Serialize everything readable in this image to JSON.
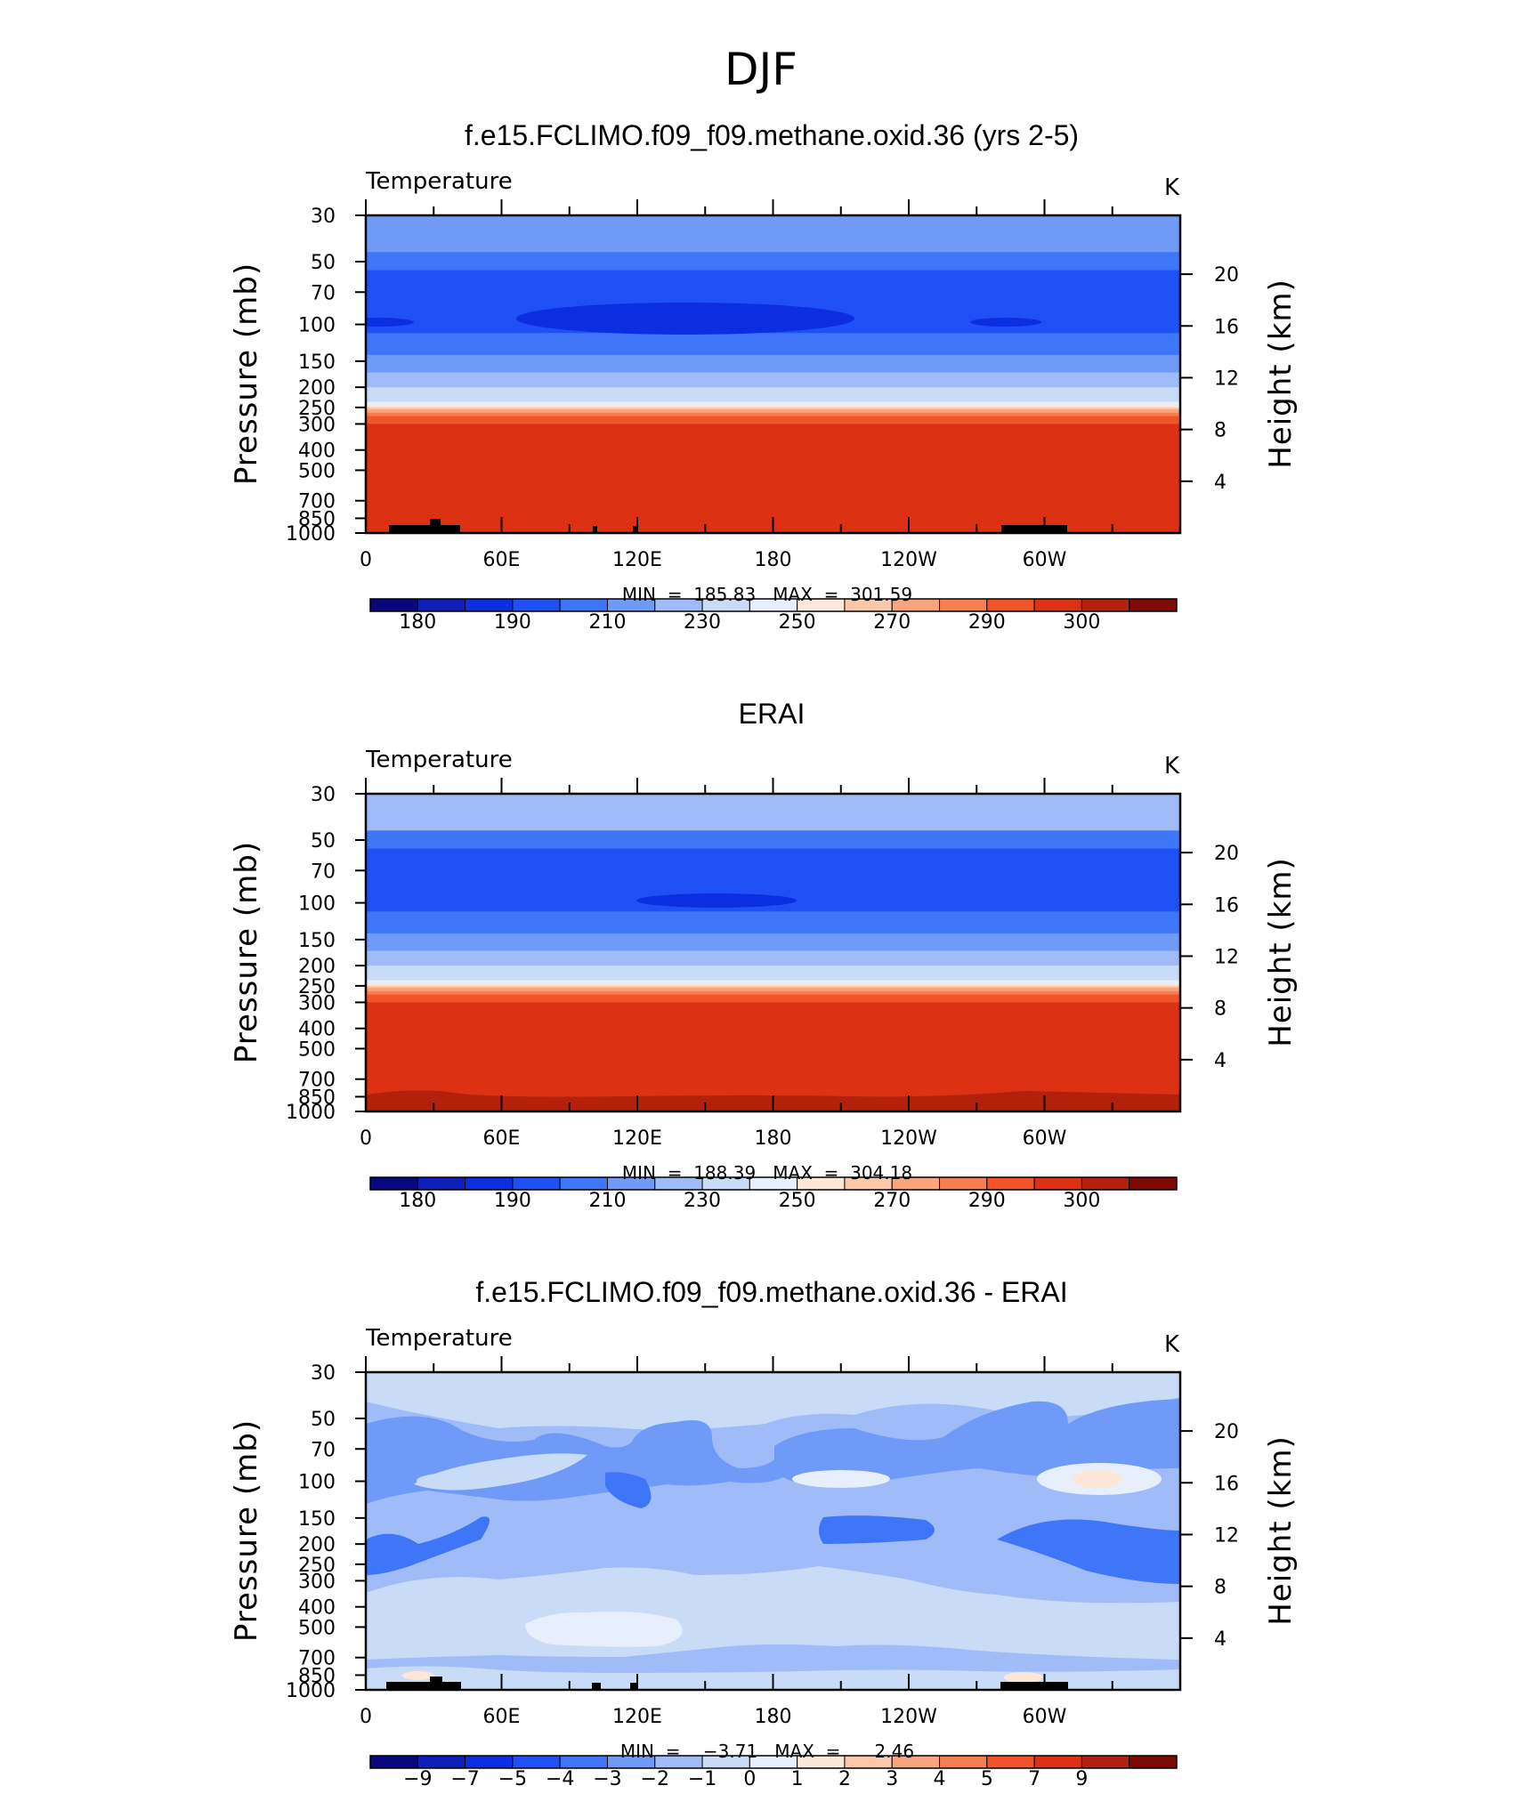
{
  "figure_title": "DJF",
  "chart_data": [
    {
      "type": "heatmap",
      "title": "f.e15.FCLIMO.f09_f09.methane.oxid.36 (yrs 2-5)",
      "variable": "Temperature",
      "units": "K",
      "ylabel": "Pressure (mb)",
      "ylabel_right": "Height (km)",
      "x_ticks": [
        "0",
        "60E",
        "120E",
        "180",
        "120W",
        "60W"
      ],
      "y_ticks": [
        "30",
        "50",
        "70",
        "100",
        "150",
        "200",
        "250",
        "300",
        "400",
        "500",
        "700",
        "850",
        "1000"
      ],
      "height_ticks": [
        "20",
        "16",
        "12",
        "8",
        "4"
      ],
      "stats": "MIN  =  185.83   MAX  =  301.59",
      "min": 185.83,
      "max": 301.59,
      "colorbar_labels": [
        "180",
        "190",
        "210",
        "230",
        "250",
        "270",
        "290",
        "300"
      ],
      "colors": [
        "#08087e",
        "#0d1fb8",
        "#0a2ee0",
        "#1e50f5",
        "#3f76f8",
        "#6f9af8",
        "#9fbcf8",
        "#c8dcf8",
        "#e6effb",
        "#fde7d8",
        "#fbc8aa",
        "#f9a47d",
        "#f67e50",
        "#f2552a",
        "#dc3112",
        "#b3200c",
        "#7e0a06"
      ],
      "profile_levels": [
        30,
        45,
        55,
        75,
        95,
        110,
        140,
        170,
        200,
        235,
        245,
        250,
        255,
        265,
        275,
        280,
        285,
        300,
        1000
      ],
      "profile_colors": [
        "#6f9af8",
        "#3f76f8",
        "#1e50f5",
        "#1e50f5",
        "#1e50f5",
        "#3f76f8",
        "#6f9af8",
        "#9fbcf8",
        "#c8dcf8",
        "#e6effb",
        "#fde7d8",
        "#fbc8aa",
        "#f9a47d",
        "#f67e50",
        "#f2552a",
        "#f2552a",
        "#f2552a",
        "#dc3112"
      ]
    },
    {
      "type": "heatmap",
      "title": "ERAI",
      "variable": "Temperature",
      "units": "K",
      "ylabel": "Pressure (mb)",
      "ylabel_right": "Height (km)",
      "x_ticks": [
        "0",
        "60E",
        "120E",
        "180",
        "120W",
        "60W"
      ],
      "y_ticks": [
        "30",
        "50",
        "70",
        "100",
        "150",
        "200",
        "250",
        "300",
        "400",
        "500",
        "700",
        "850",
        "1000"
      ],
      "height_ticks": [
        "20",
        "16",
        "12",
        "8",
        "4"
      ],
      "stats": "MIN  =  188.39   MAX  =  304.18",
      "min": 188.39,
      "max": 304.18,
      "colorbar_labels": [
        "180",
        "190",
        "210",
        "230",
        "250",
        "270",
        "290",
        "300"
      ]
    },
    {
      "type": "heatmap",
      "title": "f.e15.FCLIMO.f09_f09.methane.oxid.36 - ERAI",
      "variable": "Temperature",
      "units": "K",
      "ylabel": "Pressure (mb)",
      "ylabel_right": "Height (km)",
      "x_ticks": [
        "0",
        "60E",
        "120E",
        "180",
        "120W",
        "60W"
      ],
      "y_ticks": [
        "30",
        "50",
        "70",
        "100",
        "150",
        "200",
        "250",
        "300",
        "400",
        "500",
        "700",
        "850",
        "1000"
      ],
      "height_ticks": [
        "20",
        "16",
        "12",
        "8",
        "4"
      ],
      "stats": "MIN  =    −3.71   MAX  =      2.46",
      "min": -3.71,
      "max": 2.46,
      "colorbar_labels": [
        "−9",
        "−7",
        "−5",
        "−4",
        "−3",
        "−2",
        "−1",
        "0",
        "1",
        "2",
        "3",
        "4",
        "5",
        "7",
        "9"
      ]
    }
  ]
}
